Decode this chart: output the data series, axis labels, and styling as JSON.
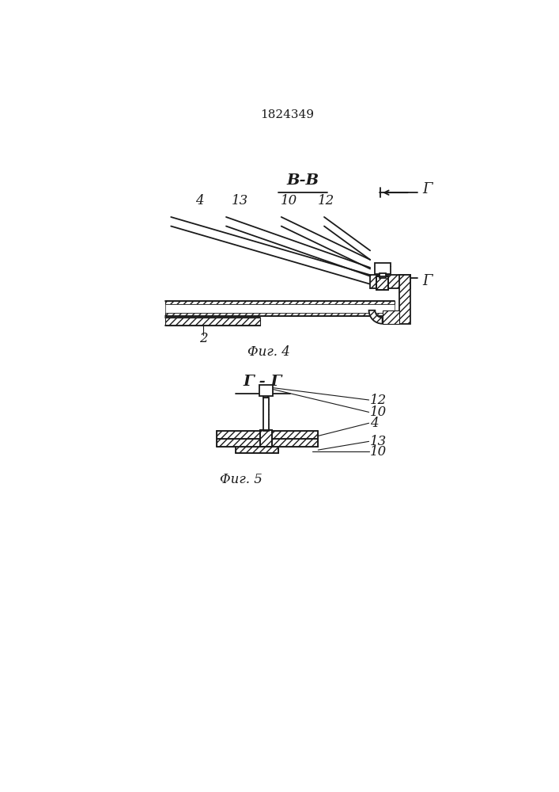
{
  "title": "1824349",
  "fig4_label": "Φиг. 4",
  "fig5_label": "Φиг. 5",
  "section_BB": "В-В",
  "section_GG": "Γ - Γ",
  "G_letter": "Γ",
  "bg_color": "#ffffff",
  "line_color": "#1a1a1a"
}
